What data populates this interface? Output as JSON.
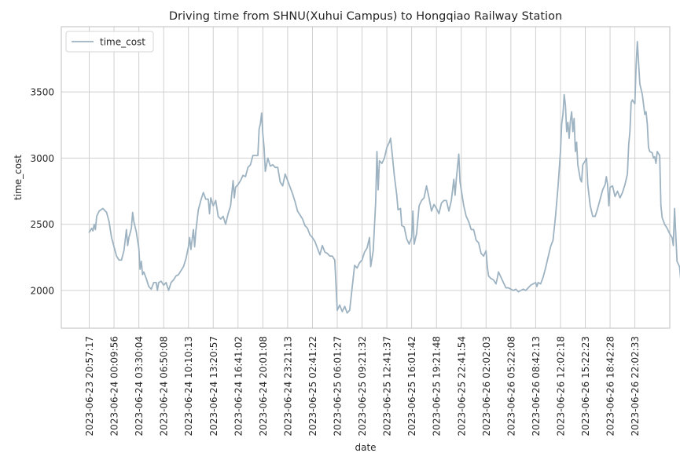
{
  "chart_data": {
    "type": "line",
    "title": "Driving time from SHNU(Xuhui Campus) to Hongqiao Railway Station",
    "xlabel": "date",
    "ylabel": "time_cost",
    "x_tick_labels": [
      "2023-06-23 20:57:17",
      "2023-06-24 00:09:56",
      "2023-06-24 03:30:04",
      "2023-06-24 06:50:08",
      "2023-06-24 10:10:13",
      "2023-06-24 13:20:57",
      "2023-06-24 16:41:02",
      "2023-06-24 20:01:08",
      "2023-06-24 23:21:13",
      "2023-06-25 02:41:22",
      "2023-06-25 06:01:27",
      "2023-06-25 09:21:32",
      "2023-06-25 12:41:37",
      "2023-06-25 16:01:42",
      "2023-06-25 19:21:48",
      "2023-06-25 22:41:54",
      "2023-06-26 02:02:03",
      "2023-06-26 05:22:08",
      "2023-06-26 08:42:13",
      "2023-06-26 12:02:18",
      "2023-06-26 15:22:23",
      "2023-06-26 18:42:28",
      "2023-06-26 22:02:33"
    ],
    "y_ticks": [
      2000,
      2500,
      3000,
      3500
    ],
    "ylim": [
      1720,
      3980
    ],
    "legend": "top-left",
    "grid": true,
    "colors": {
      "line": "#9eb3c2",
      "grid": "#d0d0d0",
      "axis": "#bfbfbf"
    },
    "series": [
      {
        "name": "time_cost",
        "values": [
          [
            0.0,
            2440
          ],
          [
            0.1,
            2470
          ],
          [
            0.15,
            2450
          ],
          [
            0.2,
            2500
          ],
          [
            0.25,
            2460
          ],
          [
            0.3,
            2560
          ],
          [
            0.4,
            2600
          ],
          [
            0.55,
            2620
          ],
          [
            0.7,
            2590
          ],
          [
            0.8,
            2520
          ],
          [
            0.9,
            2400
          ],
          [
            1.0,
            2330
          ],
          [
            1.1,
            2260
          ],
          [
            1.2,
            2230
          ],
          [
            1.3,
            2230
          ],
          [
            1.4,
            2300
          ],
          [
            1.5,
            2460
          ],
          [
            1.55,
            2340
          ],
          [
            1.6,
            2400
          ],
          [
            1.7,
            2470
          ],
          [
            1.75,
            2590
          ],
          [
            1.8,
            2520
          ],
          [
            1.9,
            2440
          ],
          [
            2.0,
            2320
          ],
          [
            2.05,
            2160
          ],
          [
            2.1,
            2220
          ],
          [
            2.15,
            2120
          ],
          [
            2.2,
            2140
          ],
          [
            2.3,
            2090
          ],
          [
            2.4,
            2030
          ],
          [
            2.5,
            2010
          ],
          [
            2.6,
            2060
          ],
          [
            2.7,
            2060
          ],
          [
            2.75,
            2000
          ],
          [
            2.8,
            2060
          ],
          [
            2.9,
            2070
          ],
          [
            3.0,
            2040
          ],
          [
            3.1,
            2060
          ],
          [
            3.2,
            2000
          ],
          [
            3.3,
            2060
          ],
          [
            3.4,
            2080
          ],
          [
            3.5,
            2110
          ],
          [
            3.6,
            2120
          ],
          [
            3.7,
            2150
          ],
          [
            3.8,
            2180
          ],
          [
            3.9,
            2240
          ],
          [
            4.0,
            2330
          ],
          [
            4.05,
            2400
          ],
          [
            4.1,
            2310
          ],
          [
            4.2,
            2460
          ],
          [
            4.25,
            2330
          ],
          [
            4.3,
            2450
          ],
          [
            4.4,
            2610
          ],
          [
            4.5,
            2680
          ],
          [
            4.6,
            2740
          ],
          [
            4.7,
            2690
          ],
          [
            4.8,
            2690
          ],
          [
            4.85,
            2580
          ],
          [
            4.9,
            2700
          ],
          [
            5.0,
            2640
          ],
          [
            5.1,
            2680
          ],
          [
            5.2,
            2560
          ],
          [
            5.3,
            2540
          ],
          [
            5.4,
            2560
          ],
          [
            5.5,
            2500
          ],
          [
            5.6,
            2580
          ],
          [
            5.7,
            2640
          ],
          [
            5.8,
            2830
          ],
          [
            5.85,
            2700
          ],
          [
            5.9,
            2780
          ],
          [
            6.0,
            2800
          ],
          [
            6.1,
            2830
          ],
          [
            6.2,
            2870
          ],
          [
            6.3,
            2860
          ],
          [
            6.4,
            2930
          ],
          [
            6.5,
            2950
          ],
          [
            6.6,
            3020
          ],
          [
            6.7,
            3020
          ],
          [
            6.8,
            3020
          ],
          [
            6.85,
            3220
          ],
          [
            6.9,
            3260
          ],
          [
            6.95,
            3340
          ],
          [
            7.0,
            3180
          ],
          [
            7.05,
            3080
          ],
          [
            7.1,
            2900
          ],
          [
            7.2,
            3000
          ],
          [
            7.3,
            2940
          ],
          [
            7.4,
            2950
          ],
          [
            7.5,
            2930
          ],
          [
            7.6,
            2930
          ],
          [
            7.7,
            2820
          ],
          [
            7.8,
            2790
          ],
          [
            7.9,
            2880
          ],
          [
            8.0,
            2830
          ],
          [
            8.1,
            2780
          ],
          [
            8.2,
            2730
          ],
          [
            8.3,
            2670
          ],
          [
            8.4,
            2600
          ],
          [
            8.5,
            2570
          ],
          [
            8.6,
            2540
          ],
          [
            8.7,
            2490
          ],
          [
            8.8,
            2470
          ],
          [
            8.9,
            2420
          ],
          [
            9.0,
            2400
          ],
          [
            9.1,
            2370
          ],
          [
            9.2,
            2320
          ],
          [
            9.3,
            2270
          ],
          [
            9.4,
            2340
          ],
          [
            9.5,
            2290
          ],
          [
            9.6,
            2280
          ],
          [
            9.7,
            2260
          ],
          [
            9.8,
            2260
          ],
          [
            9.9,
            2230
          ],
          [
            10.0,
            1850
          ],
          [
            10.1,
            1890
          ],
          [
            10.2,
            1840
          ],
          [
            10.3,
            1880
          ],
          [
            10.4,
            1830
          ],
          [
            10.5,
            1850
          ],
          [
            10.6,
            2020
          ],
          [
            10.7,
            2190
          ],
          [
            10.8,
            2170
          ],
          [
            10.9,
            2210
          ],
          [
            11.0,
            2230
          ],
          [
            11.1,
            2290
          ],
          [
            11.2,
            2320
          ],
          [
            11.3,
            2400
          ],
          [
            11.35,
            2180
          ],
          [
            11.45,
            2300
          ],
          [
            11.55,
            2670
          ],
          [
            11.6,
            3050
          ],
          [
            11.65,
            2760
          ],
          [
            11.7,
            2980
          ],
          [
            11.8,
            2960
          ],
          [
            11.9,
            3000
          ],
          [
            12.0,
            3080
          ],
          [
            12.1,
            3120
          ],
          [
            12.15,
            3150
          ],
          [
            12.2,
            3060
          ],
          [
            12.3,
            2870
          ],
          [
            12.4,
            2720
          ],
          [
            12.45,
            2610
          ],
          [
            12.55,
            2620
          ],
          [
            12.6,
            2490
          ],
          [
            12.7,
            2480
          ],
          [
            12.8,
            2390
          ],
          [
            12.9,
            2350
          ],
          [
            13.0,
            2400
          ],
          [
            13.05,
            2600
          ],
          [
            13.1,
            2350
          ],
          [
            13.2,
            2430
          ],
          [
            13.3,
            2640
          ],
          [
            13.4,
            2680
          ],
          [
            13.5,
            2700
          ],
          [
            13.6,
            2790
          ],
          [
            13.7,
            2700
          ],
          [
            13.8,
            2600
          ],
          [
            13.9,
            2650
          ],
          [
            14.0,
            2620
          ],
          [
            14.1,
            2580
          ],
          [
            14.2,
            2660
          ],
          [
            14.3,
            2680
          ],
          [
            14.4,
            2680
          ],
          [
            14.5,
            2600
          ],
          [
            14.6,
            2680
          ],
          [
            14.7,
            2840
          ],
          [
            14.75,
            2720
          ],
          [
            14.8,
            2840
          ],
          [
            14.9,
            3030
          ],
          [
            14.95,
            2820
          ],
          [
            15.0,
            2760
          ],
          [
            15.1,
            2640
          ],
          [
            15.2,
            2560
          ],
          [
            15.3,
            2520
          ],
          [
            15.4,
            2460
          ],
          [
            15.5,
            2460
          ],
          [
            15.6,
            2380
          ],
          [
            15.7,
            2360
          ],
          [
            15.8,
            2280
          ],
          [
            15.9,
            2260
          ],
          [
            16.0,
            2300
          ],
          [
            16.05,
            2180
          ],
          [
            16.1,
            2110
          ],
          [
            16.2,
            2090
          ],
          [
            16.3,
            2080
          ],
          [
            16.4,
            2050
          ],
          [
            16.45,
            2090
          ],
          [
            16.5,
            2140
          ],
          [
            16.6,
            2100
          ],
          [
            16.7,
            2060
          ],
          [
            16.8,
            2020
          ],
          [
            16.9,
            2020
          ],
          [
            17.0,
            2010
          ],
          [
            17.1,
            2000
          ],
          [
            17.2,
            2010
          ],
          [
            17.3,
            1990
          ],
          [
            17.4,
            2000
          ],
          [
            17.5,
            2010
          ],
          [
            17.6,
            2000
          ],
          [
            17.7,
            2020
          ],
          [
            17.8,
            2040
          ],
          [
            17.9,
            2050
          ],
          [
            18.0,
            2060
          ],
          [
            18.05,
            2030
          ],
          [
            18.1,
            2060
          ],
          [
            18.2,
            2050
          ],
          [
            18.3,
            2100
          ],
          [
            18.4,
            2170
          ],
          [
            18.5,
            2250
          ],
          [
            18.6,
            2330
          ],
          [
            18.7,
            2380
          ],
          [
            18.8,
            2560
          ],
          [
            18.9,
            2780
          ],
          [
            19.0,
            3050
          ],
          [
            19.05,
            3260
          ],
          [
            19.1,
            3330
          ],
          [
            19.15,
            3480
          ],
          [
            19.2,
            3400
          ],
          [
            19.25,
            3200
          ],
          [
            19.3,
            3270
          ],
          [
            19.35,
            3150
          ],
          [
            19.4,
            3280
          ],
          [
            19.45,
            3350
          ],
          [
            19.5,
            3200
          ],
          [
            19.55,
            3300
          ],
          [
            19.6,
            3050
          ],
          [
            19.65,
            3120
          ],
          [
            19.7,
            2950
          ],
          [
            19.8,
            2840
          ],
          [
            19.85,
            2820
          ],
          [
            19.9,
            2950
          ],
          [
            20.0,
            2980
          ],
          [
            20.05,
            3000
          ],
          [
            20.1,
            2800
          ],
          [
            20.2,
            2640
          ],
          [
            20.3,
            2560
          ],
          [
            20.4,
            2560
          ],
          [
            20.5,
            2620
          ],
          [
            20.6,
            2690
          ],
          [
            20.7,
            2760
          ],
          [
            20.8,
            2800
          ],
          [
            20.85,
            2860
          ],
          [
            20.9,
            2800
          ],
          [
            20.95,
            2640
          ],
          [
            21.0,
            2780
          ],
          [
            21.1,
            2790
          ],
          [
            21.2,
            2710
          ],
          [
            21.3,
            2750
          ],
          [
            21.4,
            2700
          ],
          [
            21.5,
            2740
          ],
          [
            21.6,
            2800
          ],
          [
            21.7,
            2880
          ],
          [
            21.75,
            3100
          ],
          [
            21.8,
            3200
          ],
          [
            21.85,
            3420
          ],
          [
            21.9,
            3440
          ],
          [
            22.0,
            3410
          ],
          [
            22.05,
            3700
          ],
          [
            22.1,
            3880
          ],
          [
            22.15,
            3720
          ],
          [
            22.2,
            3560
          ],
          [
            22.3,
            3480
          ],
          [
            22.4,
            3330
          ],
          [
            22.45,
            3350
          ],
          [
            22.5,
            3260
          ],
          [
            22.55,
            3080
          ],
          [
            22.6,
            3050
          ],
          [
            22.7,
            3040
          ],
          [
            22.75,
            3000
          ],
          [
            22.8,
            3010
          ],
          [
            22.85,
            2960
          ],
          [
            22.9,
            3050
          ],
          [
            23.0,
            3020
          ],
          [
            23.05,
            2640
          ],
          [
            23.1,
            2550
          ],
          [
            23.2,
            2500
          ],
          [
            23.3,
            2470
          ],
          [
            23.4,
            2430
          ],
          [
            23.5,
            2400
          ],
          [
            23.55,
            2340
          ],
          [
            23.6,
            2620
          ],
          [
            23.7,
            2220
          ],
          [
            23.8,
            2180
          ],
          [
            23.85,
            2080
          ],
          [
            23.9,
            2080
          ]
        ]
      }
    ]
  }
}
